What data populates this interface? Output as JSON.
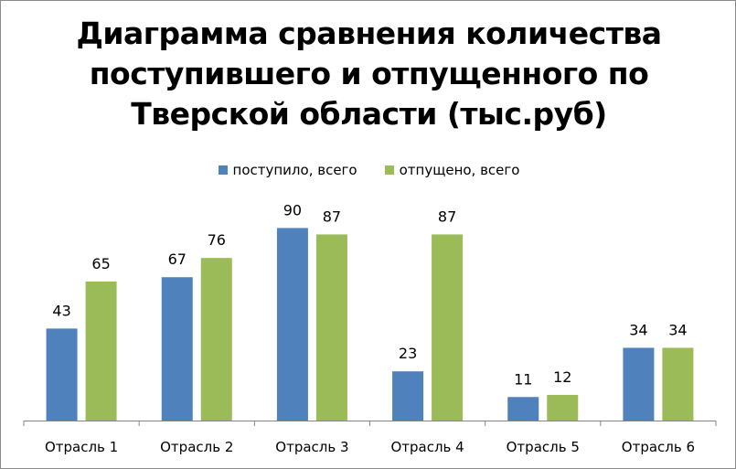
{
  "chart_data": {
    "type": "bar",
    "title": "Диаграмма сравнения количества\nпоступившего и отпущенного по\nТверской области (тыс.руб)",
    "categories": [
      "Отрасль 1",
      "Отрасль 2",
      "Отрасль 3",
      "Отрасль 4",
      "Отрасль 5",
      "Отрасль 6"
    ],
    "series": [
      {
        "name": "поступило, всего",
        "values": [
          43,
          67,
          90,
          23,
          11,
          34
        ],
        "color": "#4f81bd"
      },
      {
        "name": "отпущено, всего",
        "values": [
          65,
          76,
          87,
          87,
          12,
          34
        ],
        "color": "#9bbb59"
      }
    ],
    "ylim": [
      0,
      100
    ],
    "grid": false,
    "legend": "top"
  }
}
